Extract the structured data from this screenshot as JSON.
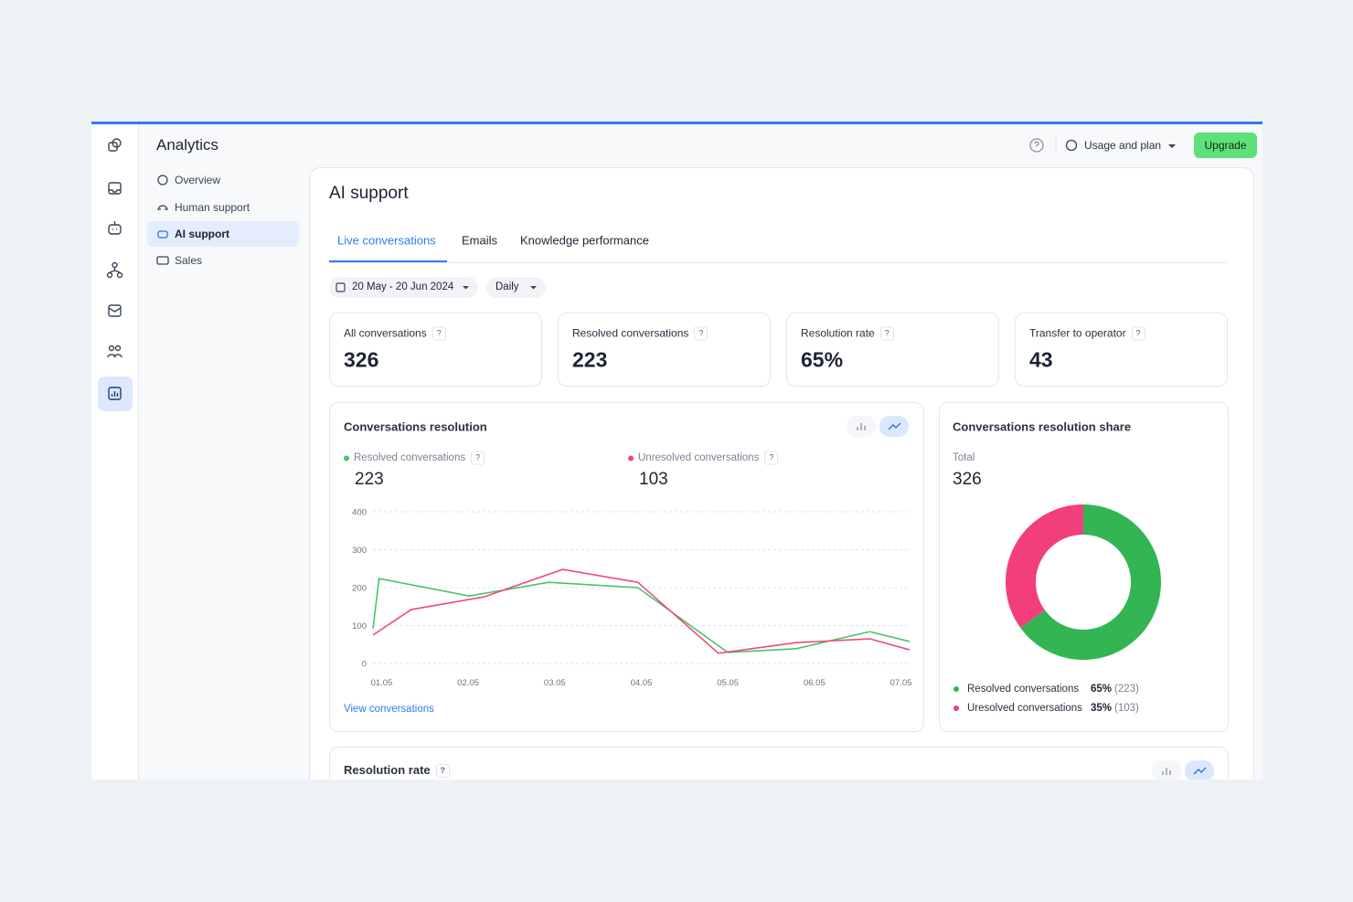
{
  "header": {
    "title": "Analytics",
    "usage": "Usage and plan",
    "upgrade": "Upgrade"
  },
  "nav": [
    "Overview",
    "Human support",
    "AI support",
    "Sales"
  ],
  "help": "?",
  "page": {
    "title": "AI support",
    "tabs": [
      "Live conversations",
      "Emails",
      "Knowledge performance"
    ],
    "date_range": "20 May - 20 Jun 2024",
    "granularity": "Daily"
  },
  "kpis": [
    {
      "label": "All conversations",
      "value": "326"
    },
    {
      "label": "Resolved conversations",
      "value": "223"
    },
    {
      "label": "Resolution rate",
      "value": "65%"
    },
    {
      "label": "Transfer to operator",
      "value": "43"
    }
  ],
  "chart_data": [
    {
      "type": "line",
      "title": "Conversations resolution",
      "link": "View conversations",
      "xlim": [
        0.9,
        7.1
      ],
      "xticks": [
        {
          "value": 1,
          "label": "01.05"
        },
        {
          "value": 2,
          "label": "02.05"
        },
        {
          "value": 3,
          "label": "03.05"
        },
        {
          "value": 4,
          "label": "04.05"
        },
        {
          "value": 5,
          "label": "05.05"
        },
        {
          "value": 6,
          "label": "06.05"
        },
        {
          "value": 7,
          "label": "07.05"
        }
      ],
      "ylim": [
        0,
        400
      ],
      "yticks": [
        0,
        100,
        200,
        300,
        400
      ],
      "grid": true,
      "series": [
        {
          "name": "Resolved conversations",
          "total": "223",
          "color": "#4cc266",
          "x": [
            0.9,
            0.97,
            2.01,
            2.93,
            3.96,
            5.0,
            5.79,
            6.64,
            7.1
          ],
          "values": [
            92,
            224,
            178,
            214,
            200,
            29,
            39,
            84,
            58
          ]
        },
        {
          "name": "Unresolved conversations",
          "total": "103",
          "color": "#f0487f",
          "x": [
            0.9,
            1.34,
            2.19,
            3.09,
            3.96,
            4.89,
            5.79,
            6.64,
            7.1
          ],
          "values": [
            75,
            142,
            176,
            248,
            214,
            27,
            55,
            65,
            36
          ]
        }
      ]
    },
    {
      "type": "pie",
      "title": "Conversations resolution share",
      "total_label": "Total",
      "total": "326",
      "categories": [
        "Resolved conversations",
        "Uresolved conversations"
      ],
      "values": [
        65,
        35
      ],
      "value_labels": [
        "65%",
        "35%"
      ],
      "counts": [
        "(223)",
        "(103)"
      ],
      "colors": [
        "#34b553",
        "#f23f79"
      ]
    }
  ],
  "bottom_card": {
    "title": "Resolution rate"
  }
}
